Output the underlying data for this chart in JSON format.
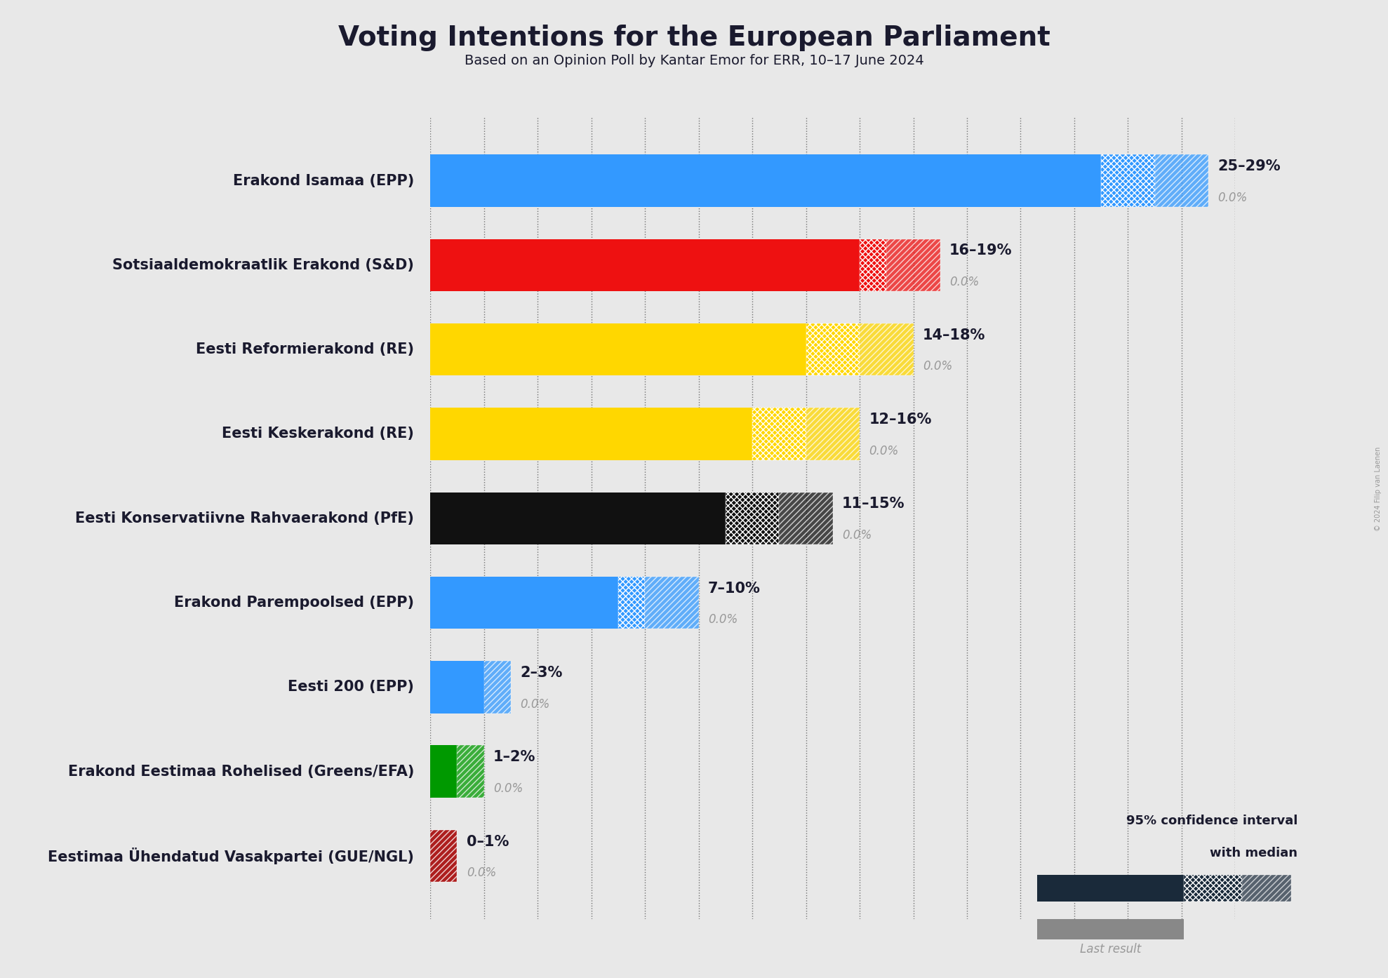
{
  "title": "Voting Intentions for the European Parliament",
  "subtitle": "Based on an Opinion Poll by Kantar Emor for ERR, 10–17 June 2024",
  "copyright": "© 2024 Filip van Laenen",
  "background_color": "#e8e8e8",
  "parties": [
    {
      "name": "Erakond Isamaa (EPP)",
      "low": 25,
      "median": 27,
      "high": 29,
      "last": 0.0,
      "color": "#3399FF"
    },
    {
      "name": "Sotsiaaldemokraatlik Erakond (S&D)",
      "low": 16,
      "median": 17,
      "high": 19,
      "last": 0.0,
      "color": "#EE1111"
    },
    {
      "name": "Eesti Reformierakond (RE)",
      "low": 14,
      "median": 16,
      "high": 18,
      "last": 0.0,
      "color": "#FFD700"
    },
    {
      "name": "Eesti Keskerakond (RE)",
      "low": 12,
      "median": 14,
      "high": 16,
      "last": 0.0,
      "color": "#FFD700"
    },
    {
      "name": "Eesti Konservatiivne Rahvaerakond (PfE)",
      "low": 11,
      "median": 13,
      "high": 15,
      "last": 0.0,
      "color": "#111111"
    },
    {
      "name": "Erakond Parempoolsed (EPP)",
      "low": 7,
      "median": 8,
      "high": 10,
      "last": 0.0,
      "color": "#3399FF"
    },
    {
      "name": "Eesti 200 (EPP)",
      "low": 2,
      "median": 2,
      "high": 3,
      "last": 0.0,
      "color": "#3399FF"
    },
    {
      "name": "Erakond Eestimaa Rohelised (Greens/EFA)",
      "low": 1,
      "median": 1,
      "high": 2,
      "last": 0.0,
      "color": "#009900"
    },
    {
      "name": "Eestimaa Ühendatud Vasakpartei (GUE/NGL)",
      "low": 0,
      "median": 0,
      "high": 1,
      "last": 0.0,
      "color": "#AA1111"
    }
  ],
  "range_labels": [
    "25–29%",
    "16–19%",
    "14–18%",
    "12–16%",
    "11–15%",
    "7–10%",
    "2–3%",
    "1–2%",
    "0–1%"
  ],
  "xlim": [
    0,
    30
  ],
  "tick_interval": 2,
  "grid_color": "#555555",
  "label_color": "#1a1a2e",
  "last_color": "#999999",
  "legend_navy": "#1a2a3a",
  "legend_gray": "#888888"
}
